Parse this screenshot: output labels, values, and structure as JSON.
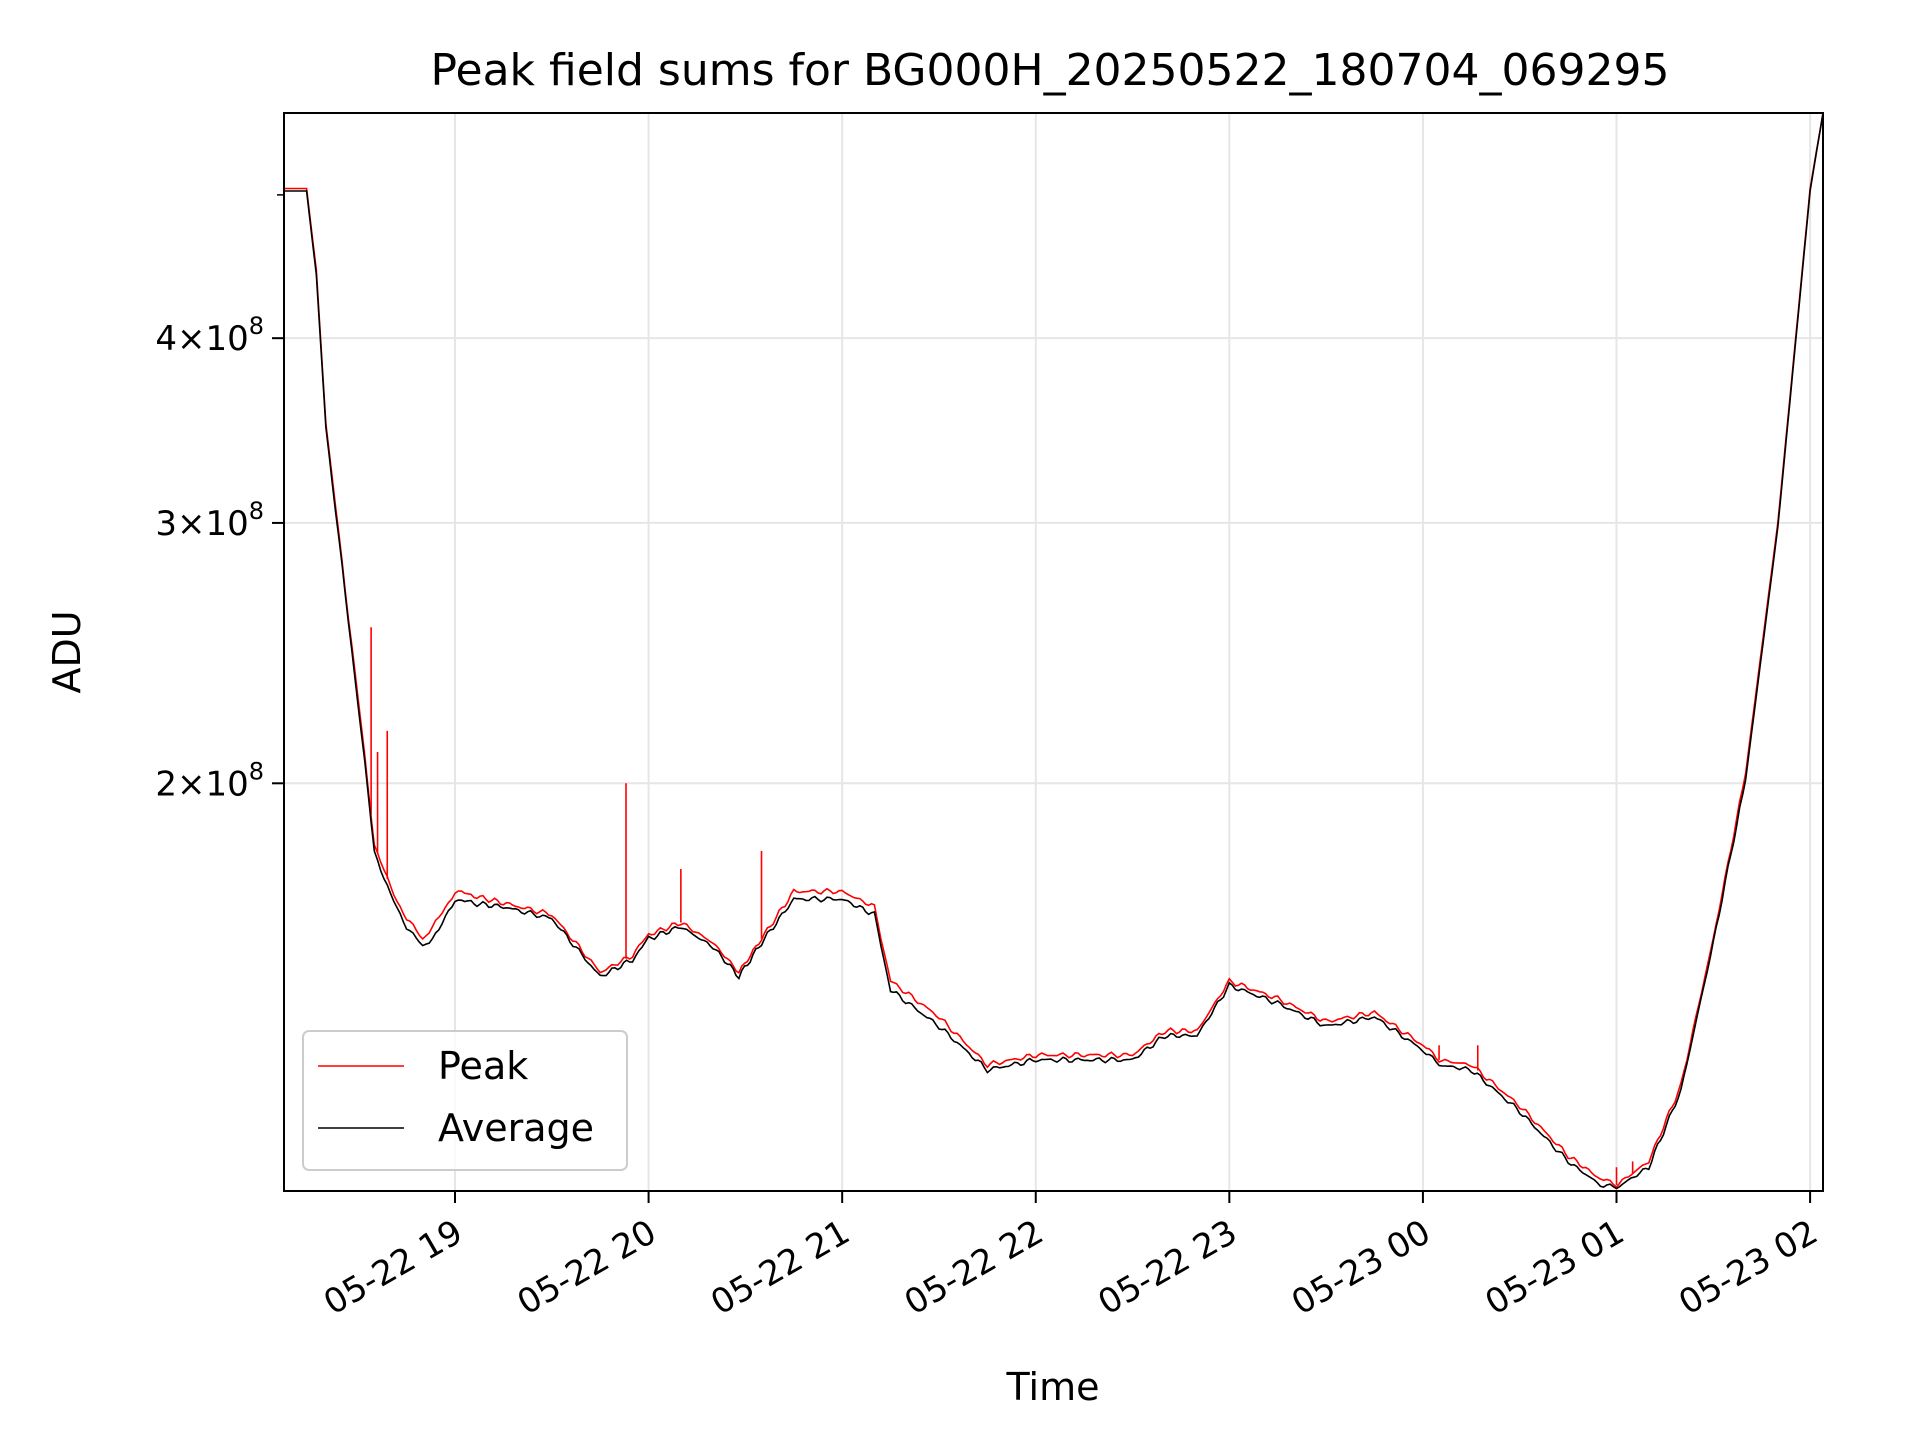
{
  "chart_data": {
    "type": "line",
    "title": "Peak field sums for BG000H_20250522_180704_069295",
    "xlabel": "Time",
    "ylabel": "ADU",
    "y_scale": "log",
    "xlim": [
      "05-22 18:07",
      "05-23 02:04"
    ],
    "ylim": [
      106000000,
      568000000
    ],
    "x_ticks": [
      "05-22 19",
      "05-22 20",
      "05-22 21",
      "05-22 22",
      "05-22 23",
      "05-23 00",
      "05-23 01",
      "05-23 02"
    ],
    "y_ticks": [
      {
        "value": 200000000,
        "mantissa": "2",
        "base": "10",
        "exp": "8"
      },
      {
        "value": 300000000,
        "mantissa": "3",
        "base": "10",
        "exp": "8"
      },
      {
        "value": 400000000,
        "mantissa": "4",
        "base": "10",
        "exp": "8"
      }
    ],
    "grid": true,
    "legend_position": "lower-left",
    "series": [
      {
        "name": "Peak",
        "color": "#ff0000",
        "x": [
          "05-22 18:07",
          "05-22 18:14",
          "05-22 18:17",
          "05-22 18:20",
          "05-22 18:25",
          "05-22 18:30",
          "05-22 18:35",
          "05-22 18:40",
          "05-22 18:45",
          "05-22 18:50",
          "05-22 18:55",
          "05-22 19:00",
          "05-22 19:05",
          "05-22 19:15",
          "05-22 19:30",
          "05-22 19:45",
          "05-22 19:55",
          "05-22 20:00",
          "05-22 20:10",
          "05-22 20:20",
          "05-22 20:28",
          "05-22 20:35",
          "05-22 20:45",
          "05-22 21:00",
          "05-22 21:10",
          "05-22 21:15",
          "05-22 21:30",
          "05-22 21:45",
          "05-22 22:00",
          "05-22 22:15",
          "05-22 22:30",
          "05-22 22:40",
          "05-22 22:50",
          "05-22 23:00",
          "05-22 23:15",
          "05-22 23:30",
          "05-22 23:45",
          "05-23 00:00",
          "05-23 00:05",
          "05-23 00:15",
          "05-23 00:30",
          "05-23 00:45",
          "05-23 00:55",
          "05-23 01:00",
          "05-23 01:10",
          "05-23 01:20",
          "05-23 01:30",
          "05-23 01:40",
          "05-23 01:50",
          "05-23 02:00",
          "05-23 02:04"
        ],
        "y": [
          505000000,
          505000000,
          445000000,
          350000000,
          282000000,
          228000000,
          182000000,
          170000000,
          162000000,
          157000000,
          162000000,
          169000000,
          168000000,
          166000000,
          163000000,
          149000000,
          153000000,
          158000000,
          161000000,
          156000000,
          149000000,
          157000000,
          169000000,
          169000000,
          165000000,
          147000000,
          139000000,
          129000000,
          131000000,
          131000000,
          131000000,
          136000000,
          136000000,
          147000000,
          143000000,
          138000000,
          140000000,
          133000000,
          130000000,
          129000000,
          121000000,
          112000000,
          108000000,
          107000000,
          111000000,
          125000000,
          157000000,
          203000000,
          300000000,
          505000000,
          568000000
        ],
        "spikes": [
          {
            "x": "05-22 18:34",
            "y": 255000000
          },
          {
            "x": "05-22 18:36",
            "y": 210000000
          },
          {
            "x": "05-22 18:39",
            "y": 217000000
          },
          {
            "x": "05-22 19:53",
            "y": 200000000
          },
          {
            "x": "05-22 20:10",
            "y": 175000000
          },
          {
            "x": "05-22 20:35",
            "y": 180000000
          },
          {
            "x": "05-23 00:05",
            "y": 133000000
          },
          {
            "x": "05-23 00:17",
            "y": 133000000
          },
          {
            "x": "05-23 01:00",
            "y": 110000000
          },
          {
            "x": "05-23 01:05",
            "y": 111000000
          }
        ]
      },
      {
        "name": "Average",
        "color": "#000000",
        "x": [
          "05-22 18:07",
          "05-22 18:14",
          "05-22 18:17",
          "05-22 18:20",
          "05-22 18:25",
          "05-22 18:30",
          "05-22 18:35",
          "05-22 18:40",
          "05-22 18:45",
          "05-22 18:50",
          "05-22 18:55",
          "05-22 19:00",
          "05-22 19:05",
          "05-22 19:15",
          "05-22 19:30",
          "05-22 19:45",
          "05-22 19:55",
          "05-22 20:00",
          "05-22 20:10",
          "05-22 20:20",
          "05-22 20:28",
          "05-22 20:35",
          "05-22 20:45",
          "05-22 21:00",
          "05-22 21:10",
          "05-22 21:15",
          "05-22 21:30",
          "05-22 21:45",
          "05-22 22:00",
          "05-22 22:15",
          "05-22 22:30",
          "05-22 22:40",
          "05-22 22:50",
          "05-22 23:00",
          "05-22 23:15",
          "05-22 23:30",
          "05-22 23:45",
          "05-23 00:00",
          "05-23 00:05",
          "05-23 00:15",
          "05-23 00:30",
          "05-23 00:45",
          "05-23 00:55",
          "05-23 01:00",
          "05-23 01:10",
          "05-23 01:20",
          "05-23 01:30",
          "05-23 01:40",
          "05-23 01:50",
          "05-23 02:00",
          "05-23 02:04"
        ],
        "y": [
          503000000,
          503000000,
          442000000,
          348000000,
          280000000,
          226000000,
          180000000,
          168000000,
          160000000,
          155000000,
          159000000,
          167000000,
          166000000,
          165000000,
          162000000,
          148000000,
          152000000,
          157000000,
          160000000,
          155000000,
          148000000,
          156000000,
          167000000,
          167000000,
          163000000,
          145000000,
          137000000,
          128000000,
          130000000,
          130000000,
          130000000,
          135000000,
          135000000,
          146000000,
          142000000,
          137000000,
          139000000,
          132000000,
          129000000,
          128000000,
          120000000,
          111000000,
          107000000,
          106500000,
          110000000,
          124000000,
          156000000,
          201000000,
          298000000,
          503000000,
          568000000
        ]
      }
    ]
  }
}
